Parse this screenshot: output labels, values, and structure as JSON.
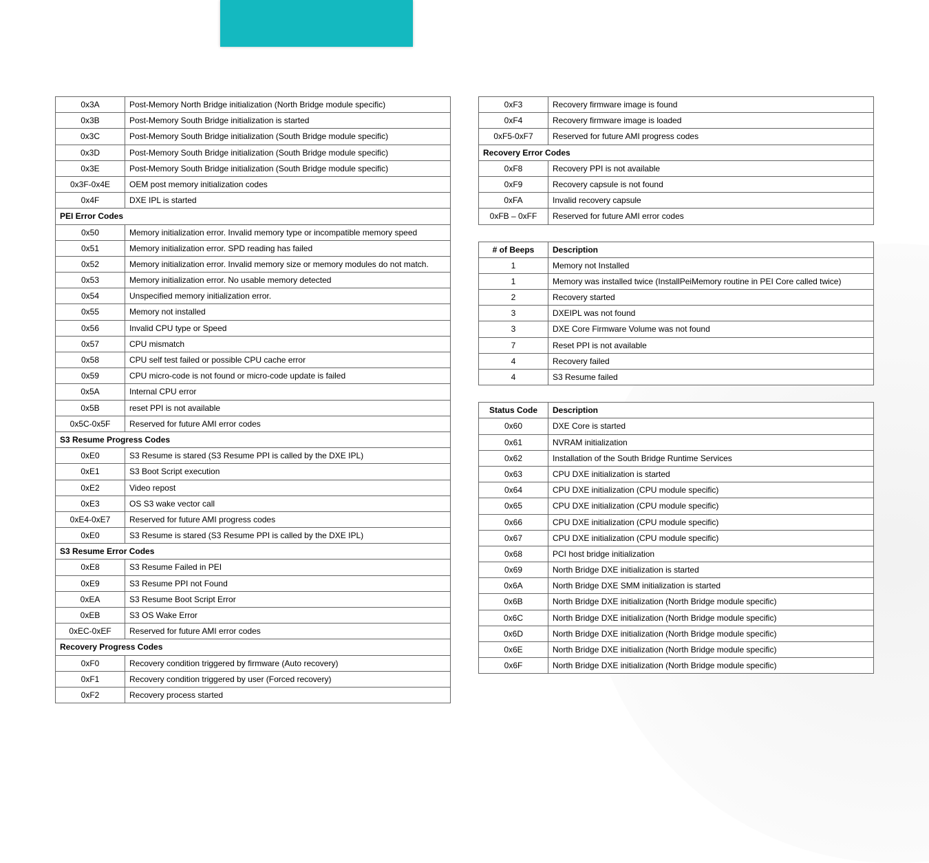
{
  "left_table": {
    "rows": [
      {
        "code": "0x3A",
        "desc": "Post-Memory North Bridge initialization (North Bridge module specific)"
      },
      {
        "code": "0x3B",
        "desc": "Post-Memory South Bridge initialization is started"
      },
      {
        "code": "0x3C",
        "desc": "Post-Memory South Bridge initialization (South Bridge module specific)"
      },
      {
        "code": "0x3D",
        "desc": "Post-Memory South Bridge initialization (South Bridge module specific)"
      },
      {
        "code": "0x3E",
        "desc": "Post-Memory South Bridge initialization (South Bridge module specific)"
      },
      {
        "code": "0x3F-0x4E",
        "desc": "OEM post memory initialization codes"
      },
      {
        "code": "0x4F",
        "desc": "DXE IPL is started"
      },
      {
        "section": "PEI Error Codes"
      },
      {
        "code": "0x50",
        "desc": "Memory initialization error. Invalid memory type or incompatible memory speed"
      },
      {
        "code": "0x51",
        "desc": "Memory initialization error. SPD reading has failed"
      },
      {
        "code": "0x52",
        "desc": "Memory initialization error. Invalid memory size or memory modules do not match."
      },
      {
        "code": "0x53",
        "desc": "Memory initialization error. No usable memory detected"
      },
      {
        "code": "0x54",
        "desc": "Unspecified memory initialization error."
      },
      {
        "code": "0x55",
        "desc": "Memory not installed"
      },
      {
        "code": "0x56",
        "desc": "Invalid CPU type or Speed"
      },
      {
        "code": "0x57",
        "desc": "CPU mismatch"
      },
      {
        "code": "0x58",
        "desc": "CPU self test failed or possible CPU cache error"
      },
      {
        "code": "0x59",
        "desc": "CPU micro-code is not found or micro-code update is failed"
      },
      {
        "code": "0x5A",
        "desc": "Internal CPU error"
      },
      {
        "code": "0x5B",
        "desc": "reset PPI is  not available"
      },
      {
        "code": "0x5C-0x5F",
        "desc": "Reserved for future AMI error codes"
      },
      {
        "section": "S3 Resume Progress Codes"
      },
      {
        "code": "0xE0",
        "desc": "S3 Resume is stared (S3 Resume PPI is called by the DXE IPL)"
      },
      {
        "code": "0xE1",
        "desc": "S3 Boot Script execution"
      },
      {
        "code": "0xE2",
        "desc": "Video repost"
      },
      {
        "code": "0xE3",
        "desc": "OS S3 wake vector call"
      },
      {
        "code": "0xE4-0xE7",
        "desc": "Reserved for future AMI progress codes"
      },
      {
        "code": "0xE0",
        "desc": "S3 Resume is stared (S3 Resume PPI is called by the DXE IPL)"
      },
      {
        "section": "S3 Resume Error Codes"
      },
      {
        "code": "0xE8",
        "desc": "S3 Resume Failed in PEI"
      },
      {
        "code": "0xE9",
        "desc": "S3 Resume PPI not Found"
      },
      {
        "code": "0xEA",
        "desc": "S3 Resume Boot Script Error"
      },
      {
        "code": "0xEB",
        "desc": "S3 OS Wake Error"
      },
      {
        "code": "0xEC-0xEF",
        "desc": "Reserved for future AMI error codes"
      },
      {
        "section": "Recovery Progress Codes"
      },
      {
        "code": "0xF0",
        "desc": "Recovery condition triggered by firmware (Auto recovery)"
      },
      {
        "code": "0xF1",
        "desc": "Recovery condition triggered by user (Forced recovery)"
      },
      {
        "code": "0xF2",
        "desc": "Recovery process started"
      }
    ]
  },
  "right_table_top": {
    "rows": [
      {
        "code": "0xF3",
        "desc": "Recovery firmware image is found"
      },
      {
        "code": "0xF4",
        "desc": "Recovery firmware image is loaded"
      },
      {
        "code": "0xF5-0xF7",
        "desc": "Reserved for future AMI progress codes"
      },
      {
        "section": "Recovery Error Codes"
      },
      {
        "code": "0xF8",
        "desc": "Recovery PPI is not available"
      },
      {
        "code": "0xF9",
        "desc": "Recovery capsule is not found"
      },
      {
        "code": "0xFA",
        "desc": "Invalid recovery capsule"
      },
      {
        "code": "0xFB – 0xFF",
        "desc": "Reserved for future AMI error codes"
      }
    ]
  },
  "beeps_table": {
    "head_code": "# of Beeps",
    "head_desc": "Description",
    "rows": [
      {
        "code": "1",
        "desc": "Memory not Installed"
      },
      {
        "code": "1",
        "desc": "Memory was installed twice (InstallPeiMemory routine in PEI Core called twice)"
      },
      {
        "code": "2",
        "desc": "Recovery started"
      },
      {
        "code": "3",
        "desc": "DXEIPL was not found"
      },
      {
        "code": "3",
        "desc": "DXE Core Firmware Volume was not found"
      },
      {
        "code": "7",
        "desc": "Reset PPI is not available"
      },
      {
        "code": "4",
        "desc": "Recovery failed"
      },
      {
        "code": "4",
        "desc": "S3 Resume failed"
      }
    ]
  },
  "status_table": {
    "head_code": "Status Code",
    "head_desc": "Description",
    "rows": [
      {
        "code": "0x60",
        "desc": "DXE Core is started"
      },
      {
        "code": "0x61",
        "desc": "NVRAM initialization"
      },
      {
        "code": "0x62",
        "desc": "Installation of the South Bridge Runtime Services"
      },
      {
        "code": "0x63",
        "desc": "CPU DXE initialization is started"
      },
      {
        "code": "0x64",
        "desc": "CPU DXE initialization (CPU module specific)"
      },
      {
        "code": "0x65",
        "desc": "CPU DXE initialization (CPU module specific)"
      },
      {
        "code": "0x66",
        "desc": "CPU DXE initialization (CPU module specific)"
      },
      {
        "code": "0x67",
        "desc": "CPU DXE initialization (CPU module specific)"
      },
      {
        "code": "0x68",
        "desc": "PCI host bridge initialization"
      },
      {
        "code": "0x69",
        "desc": "North Bridge DXE initialization is started"
      },
      {
        "code": "0x6A",
        "desc": "North Bridge DXE SMM initialization is started"
      },
      {
        "code": "0x6B",
        "desc": "North Bridge  DXE initialization (North Bridge module specific)"
      },
      {
        "code": "0x6C",
        "desc": "North Bridge  DXE initialization (North Bridge module specific)"
      },
      {
        "code": "0x6D",
        "desc": "North Bridge  DXE initialization (North Bridge module specific)"
      },
      {
        "code": "0x6E",
        "desc": "North Bridge  DXE initialization (North Bridge module specific)"
      },
      {
        "code": "0x6F",
        "desc": "North Bridge  DXE initialization (North Bridge module specific)"
      }
    ]
  }
}
